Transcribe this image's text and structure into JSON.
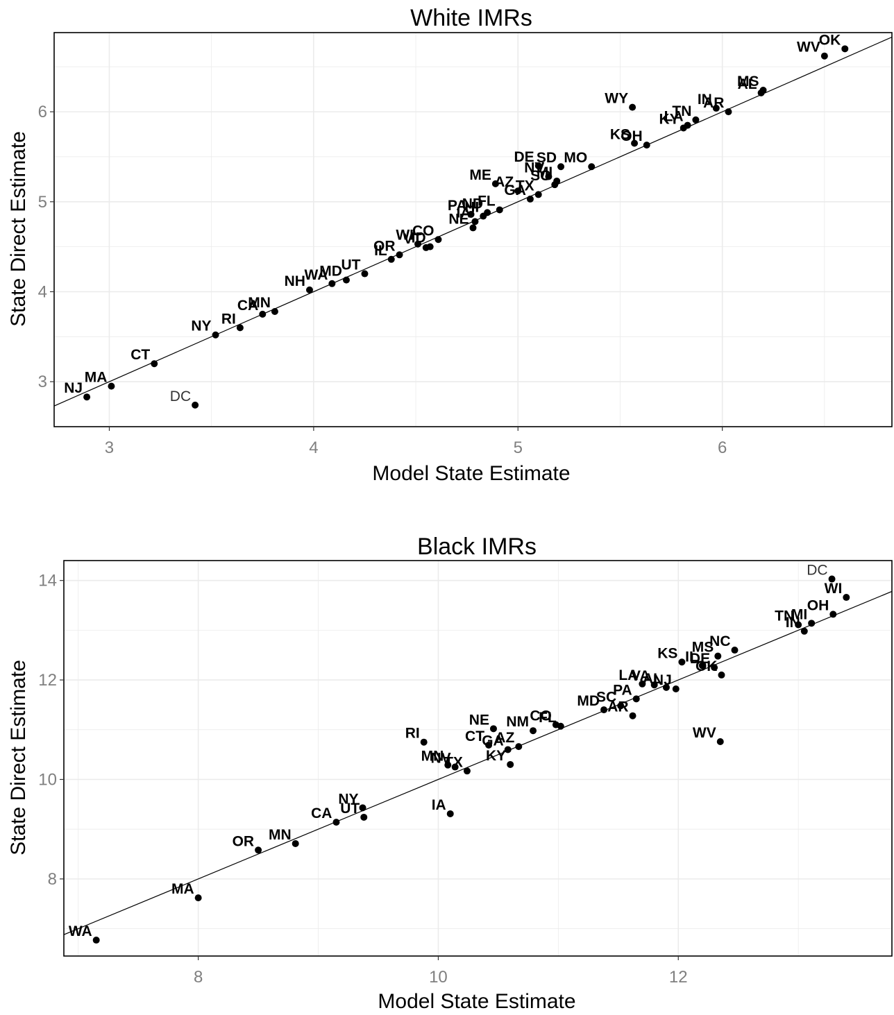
{
  "chart_data": [
    {
      "type": "scatter",
      "title": "White IMRs",
      "xlabel": "Model State Estimate",
      "ylabel": "State Direct Estimate",
      "xlim": [
        2.73,
        6.83
      ],
      "ylim": [
        2.5,
        6.88
      ],
      "x_ticks": [
        "3",
        "4",
        "5",
        "6"
      ],
      "y_ticks": [
        "3",
        "4",
        "5",
        "6"
      ],
      "grid": true,
      "reference_line": "y = x",
      "points": [
        {
          "label": "OK",
          "x": 6.6,
          "y": 6.7
        },
        {
          "label": "WV",
          "x": 6.5,
          "y": 6.62
        },
        {
          "label": "MS",
          "x": 6.2,
          "y": 6.24
        },
        {
          "label": "AL",
          "x": 6.19,
          "y": 6.21
        },
        {
          "label": "IN",
          "x": 5.97,
          "y": 6.04
        },
        {
          "label": "AR",
          "x": 6.03,
          "y": 6.0
        },
        {
          "label": "WY",
          "x": 5.56,
          "y": 6.05
        },
        {
          "label": "TN",
          "x": 5.87,
          "y": 5.91
        },
        {
          "label": "LA",
          "x": 5.83,
          "y": 5.85
        },
        {
          "label": "KY",
          "x": 5.81,
          "y": 5.82
        },
        {
          "label": "KS",
          "x": 5.57,
          "y": 5.65
        },
        {
          "label": "OH",
          "x": 5.63,
          "y": 5.63
        },
        {
          "label": "DE",
          "x": 5.1,
          "y": 5.4
        },
        {
          "label": "SD",
          "x": 5.21,
          "y": 5.39
        },
        {
          "label": "MO",
          "x": 5.36,
          "y": 5.39
        },
        {
          "label": "NV",
          "x": 5.15,
          "y": 5.28
        },
        {
          "label": "MI",
          "x": 5.19,
          "y": 5.23
        },
        {
          "label": "SC",
          "x": 5.18,
          "y": 5.19
        },
        {
          "label": "ME",
          "x": 4.89,
          "y": 5.2
        },
        {
          "label": "AZ",
          "x": 5.0,
          "y": 5.12
        },
        {
          "label": "TX",
          "x": 5.1,
          "y": 5.08
        },
        {
          "label": "GA",
          "x": 5.06,
          "y": 5.03
        },
        {
          "label": "FL",
          "x": 4.91,
          "y": 4.91
        },
        {
          "label": "ND",
          "x": 4.85,
          "y": 4.88
        },
        {
          "label": "PA",
          "x": 4.77,
          "y": 4.86
        },
        {
          "label": "HI",
          "x": 4.83,
          "y": 4.84
        },
        {
          "label": "IA",
          "x": 4.79,
          "y": 4.78
        },
        {
          "label": "NE",
          "x": 4.78,
          "y": 4.71
        },
        {
          "label": "CO",
          "x": 4.61,
          "y": 4.58
        },
        {
          "label": "ID",
          "x": 4.57,
          "y": 4.5
        },
        {
          "label": "VT",
          "x": 4.55,
          "y": 4.49
        },
        {
          "label": "WI",
          "x": 4.51,
          "y": 4.53
        },
        {
          "label": "OR",
          "x": 4.42,
          "y": 4.41
        },
        {
          "label": "IL",
          "x": 4.38,
          "y": 4.36
        },
        {
          "label": "UT",
          "x": 4.25,
          "y": 4.2
        },
        {
          "label": "MD",
          "x": 4.16,
          "y": 4.13
        },
        {
          "label": "WA",
          "x": 4.09,
          "y": 4.09
        },
        {
          "label": "NH",
          "x": 3.98,
          "y": 4.02
        },
        {
          "label": "MN",
          "x": 3.81,
          "y": 3.78
        },
        {
          "label": "CA",
          "x": 3.75,
          "y": 3.75
        },
        {
          "label": "RI",
          "x": 3.64,
          "y": 3.6
        },
        {
          "label": "NY",
          "x": 3.52,
          "y": 3.52
        },
        {
          "label": "CT",
          "x": 3.22,
          "y": 3.2
        },
        {
          "label": "MA",
          "x": 3.01,
          "y": 2.95
        },
        {
          "label": "NJ",
          "x": 2.89,
          "y": 2.83
        },
        {
          "label": "DC",
          "x": 3.42,
          "y": 2.74
        }
      ]
    },
    {
      "type": "scatter",
      "title": "Black IMRs",
      "xlabel": "Model State Estimate",
      "ylabel": "State Direct Estimate",
      "xlim": [
        6.88,
        13.78
      ],
      "ylim": [
        6.45,
        14.4
      ],
      "x_ticks": [
        "8",
        "10",
        "12"
      ],
      "y_ticks": [
        "8",
        "10",
        "12",
        "14"
      ],
      "grid": true,
      "reference_line": "y = x",
      "points": [
        {
          "label": "DC",
          "x": 13.28,
          "y": 14.03
        },
        {
          "label": "WI",
          "x": 13.4,
          "y": 13.66
        },
        {
          "label": "OH",
          "x": 13.29,
          "y": 13.32
        },
        {
          "label": "MI",
          "x": 13.11,
          "y": 13.14
        },
        {
          "label": "TN",
          "x": 13.0,
          "y": 13.11
        },
        {
          "label": "IN",
          "x": 13.05,
          "y": 12.98
        },
        {
          "label": "NC",
          "x": 12.47,
          "y": 12.6
        },
        {
          "label": "MS",
          "x": 12.33,
          "y": 12.48
        },
        {
          "label": "KS",
          "x": 12.03,
          "y": 12.36
        },
        {
          "label": "IL",
          "x": 12.2,
          "y": 12.29
        },
        {
          "label": "DE",
          "x": 12.3,
          "y": 12.25
        },
        {
          "label": "OK",
          "x": 12.36,
          "y": 12.1
        },
        {
          "label": "LA",
          "x": 11.7,
          "y": 11.92
        },
        {
          "label": "VA",
          "x": 11.8,
          "y": 11.9
        },
        {
          "label": "AL",
          "x": 11.9,
          "y": 11.85
        },
        {
          "label": "NJ",
          "x": 11.98,
          "y": 11.82
        },
        {
          "label": "PA",
          "x": 11.65,
          "y": 11.62
        },
        {
          "label": "SC",
          "x": 11.52,
          "y": 11.48
        },
        {
          "label": "MD",
          "x": 11.38,
          "y": 11.4
        },
        {
          "label": "AR",
          "x": 11.62,
          "y": 11.28
        },
        {
          "label": "CO",
          "x": 10.98,
          "y": 11.1
        },
        {
          "label": "FL",
          "x": 11.02,
          "y": 11.07
        },
        {
          "label": "NM",
          "x": 10.79,
          "y": 10.98
        },
        {
          "label": "NE",
          "x": 10.46,
          "y": 11.02
        },
        {
          "label": "RI",
          "x": 9.88,
          "y": 10.75
        },
        {
          "label": "CT",
          "x": 10.42,
          "y": 10.69
        },
        {
          "label": "AZ",
          "x": 10.67,
          "y": 10.66
        },
        {
          "label": "GA",
          "x": 10.58,
          "y": 10.6
        },
        {
          "label": "WV",
          "x": 12.35,
          "y": 10.76
        },
        {
          "label": "KY",
          "x": 10.6,
          "y": 10.3
        },
        {
          "label": "MN",
          "x": 10.08,
          "y": 10.29
        },
        {
          "label": "NV",
          "x": 10.14,
          "y": 10.25
        },
        {
          "label": "TX",
          "x": 10.24,
          "y": 10.17
        },
        {
          "label": "NY",
          "x": 9.37,
          "y": 9.43
        },
        {
          "label": "UT",
          "x": 9.38,
          "y": 9.24
        },
        {
          "label": "CA",
          "x": 9.15,
          "y": 9.14
        },
        {
          "label": "IA",
          "x": 10.1,
          "y": 9.31
        },
        {
          "label": "MN",
          "x": 8.81,
          "y": 8.71
        },
        {
          "label": "OR",
          "x": 8.5,
          "y": 8.58
        },
        {
          "label": "MA",
          "x": 8.0,
          "y": 7.62
        },
        {
          "label": "WA",
          "x": 7.15,
          "y": 6.77
        }
      ]
    }
  ]
}
